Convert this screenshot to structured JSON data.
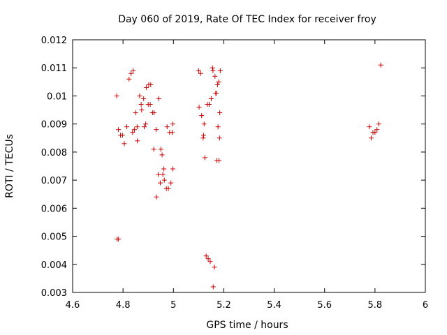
{
  "chart_data": {
    "type": "scatter",
    "title": "Day 060 of 2019, Rate Of TEC Index for receiver froy",
    "xlabel": "GPS time / hours",
    "ylabel": "ROTI / TECUs",
    "xlim": [
      4.6,
      6.0
    ],
    "ylim": [
      0.003,
      0.012
    ],
    "xticks": [
      4.6,
      4.8,
      5.0,
      5.2,
      5.4,
      5.6,
      5.8,
      6.0
    ],
    "xtick_labels": [
      "4.6",
      "4.8",
      "5",
      "5.2",
      "5.4",
      "5.6",
      "5.8",
      "6"
    ],
    "yticks": [
      0.003,
      0.004,
      0.005,
      0.006,
      0.007,
      0.008,
      0.009,
      0.01,
      0.011,
      0.012
    ],
    "ytick_labels": [
      "0.003",
      "0.004",
      "0.005",
      "0.006",
      "0.007",
      "0.008",
      "0.009",
      "0.01",
      "0.011",
      "0.012"
    ],
    "grid": false,
    "marker": "+",
    "color": "#cc0000",
    "series": [
      {
        "name": "ROTI",
        "points": [
          [
            4.775,
            0.01
          ],
          [
            4.777,
            0.0049
          ],
          [
            4.782,
            0.0049
          ],
          [
            4.782,
            0.0088
          ],
          [
            4.79,
            0.0086
          ],
          [
            4.798,
            0.0086
          ],
          [
            4.805,
            0.0083
          ],
          [
            4.815,
            0.0089
          ],
          [
            4.824,
            0.0106
          ],
          [
            4.832,
            0.0108
          ],
          [
            4.84,
            0.0109
          ],
          [
            4.838,
            0.0087
          ],
          [
            4.845,
            0.0088
          ],
          [
            4.85,
            0.0094
          ],
          [
            4.856,
            0.0089
          ],
          [
            4.857,
            0.0084
          ],
          [
            4.866,
            0.01
          ],
          [
            4.872,
            0.0097
          ],
          [
            4.874,
            0.0095
          ],
          [
            4.882,
            0.0099
          ],
          [
            4.884,
            0.0089
          ],
          [
            4.89,
            0.009
          ],
          [
            4.893,
            0.0103
          ],
          [
            4.9,
            0.0097
          ],
          [
            4.902,
            0.0104
          ],
          [
            4.908,
            0.0097
          ],
          [
            4.91,
            0.0104
          ],
          [
            4.917,
            0.0094
          ],
          [
            4.923,
            0.0094
          ],
          [
            4.922,
            0.0081
          ],
          [
            4.932,
            0.0088
          ],
          [
            4.933,
            0.0064
          ],
          [
            4.94,
            0.0072
          ],
          [
            4.942,
            0.0099
          ],
          [
            4.948,
            0.0069
          ],
          [
            4.95,
            0.0081
          ],
          [
            4.955,
            0.0079
          ],
          [
            4.958,
            0.0072
          ],
          [
            4.962,
            0.0074
          ],
          [
            4.964,
            0.007
          ],
          [
            4.972,
            0.0067
          ],
          [
            4.975,
            0.0089
          ],
          [
            4.98,
            0.0067
          ],
          [
            4.985,
            0.0087
          ],
          [
            4.99,
            0.0069
          ],
          [
            4.995,
            0.0087
          ],
          [
            4.998,
            0.0074
          ],
          [
            4.998,
            0.009
          ],
          [
            5.1,
            0.0109
          ],
          [
            5.102,
            0.0096
          ],
          [
            5.108,
            0.0108
          ],
          [
            5.112,
            0.0093
          ],
          [
            5.118,
            0.0085
          ],
          [
            5.12,
            0.0086
          ],
          [
            5.122,
            0.009
          ],
          [
            5.125,
            0.0078
          ],
          [
            5.13,
            0.0043
          ],
          [
            5.135,
            0.0097
          ],
          [
            5.138,
            0.0042
          ],
          [
            5.142,
            0.0097
          ],
          [
            5.146,
            0.0041
          ],
          [
            5.15,
            0.0099
          ],
          [
            5.155,
            0.011
          ],
          [
            5.157,
            0.0109
          ],
          [
            5.158,
            0.0032
          ],
          [
            5.163,
            0.0039
          ],
          [
            5.165,
            0.0107
          ],
          [
            5.168,
            0.0101
          ],
          [
            5.17,
            0.0101
          ],
          [
            5.172,
            0.0077
          ],
          [
            5.175,
            0.0104
          ],
          [
            5.177,
            0.0089
          ],
          [
            5.18,
            0.0105
          ],
          [
            5.181,
            0.0077
          ],
          [
            5.183,
            0.0085
          ],
          [
            5.184,
            0.0094
          ],
          [
            5.186,
            0.0109
          ],
          [
            5.778,
            0.0089
          ],
          [
            5.785,
            0.0085
          ],
          [
            5.792,
            0.0087
          ],
          [
            5.8,
            0.0087
          ],
          [
            5.808,
            0.0088
          ],
          [
            5.815,
            0.009
          ],
          [
            5.823,
            0.0111
          ]
        ]
      }
    ]
  }
}
